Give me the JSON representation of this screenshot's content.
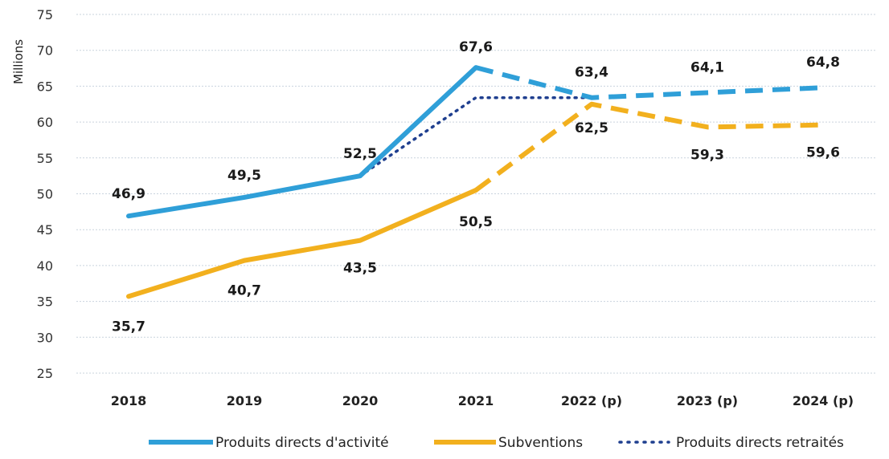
{
  "chart_data": {
    "type": "line",
    "title": "",
    "xlabel": "",
    "ylabel": "Millions",
    "categories": [
      "2018",
      "2019",
      "2020",
      "2021",
      "2022 (p)",
      "2023 (p)",
      "2024 (p)"
    ],
    "ylim": [
      25,
      75
    ],
    "yticks": [
      25,
      30,
      35,
      40,
      45,
      50,
      55,
      60,
      65,
      70,
      75
    ],
    "grid": true,
    "legend_position": "bottom",
    "series": [
      {
        "name": "Produits directs d'activité",
        "color": "#2f9fd8",
        "style": "solid-then-dashed",
        "values": [
          46.9,
          49.5,
          52.5,
          67.6,
          63.4,
          64.1,
          64.8
        ],
        "labels": [
          "46,9",
          "49,5",
          "52,5",
          "67,6",
          "63,4",
          "64,1",
          "64,8"
        ]
      },
      {
        "name": "Subventions",
        "color": "#f2b01e",
        "style": "solid-then-dashed",
        "values": [
          35.7,
          40.7,
          43.5,
          50.5,
          62.5,
          59.3,
          59.6
        ],
        "labels": [
          "35,7",
          "40,7",
          "43,5",
          "50,5",
          "62,5",
          "59,3",
          "59,6"
        ]
      },
      {
        "name": "Produits directs retraités",
        "color": "#1f3f8f",
        "style": "dotted",
        "values": [
          null,
          null,
          52.5,
          63.4,
          63.4,
          null,
          null
        ],
        "labels": []
      }
    ]
  }
}
